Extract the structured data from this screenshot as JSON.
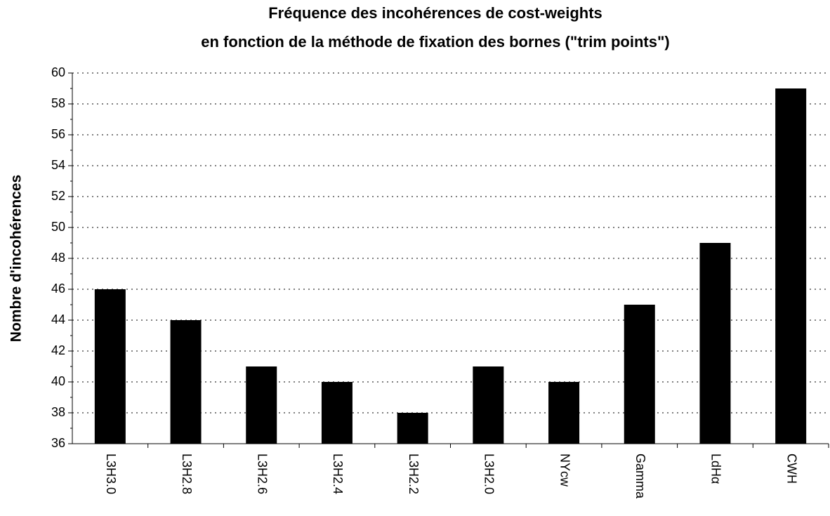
{
  "chart_data": {
    "type": "bar",
    "title": [
      "Fréquence des incohérences de cost-weights",
      "en fonction de la méthode de fixation des bornes (\"trim points\")"
    ],
    "ylabel": "Nombre d'incohérences",
    "categories": [
      "L3H3.0",
      "L3H2.8",
      "L3H2.6",
      "L3H2.4",
      "L3H2.2",
      "L3H2.0",
      "NYcw",
      "Gamma",
      "LdHα",
      "CWH"
    ],
    "values": [
      46,
      44,
      41,
      40,
      38,
      41,
      40,
      45,
      49,
      59
    ],
    "color": "#000000",
    "ylim": [
      36,
      60
    ],
    "yticks": [
      36,
      38,
      40,
      42,
      44,
      46,
      48,
      50,
      52,
      54,
      56,
      58,
      60
    ],
    "minor_yticks": [
      37,
      39,
      41,
      43,
      45,
      47,
      49,
      51,
      53,
      55,
      57,
      59
    ],
    "grid": true
  }
}
